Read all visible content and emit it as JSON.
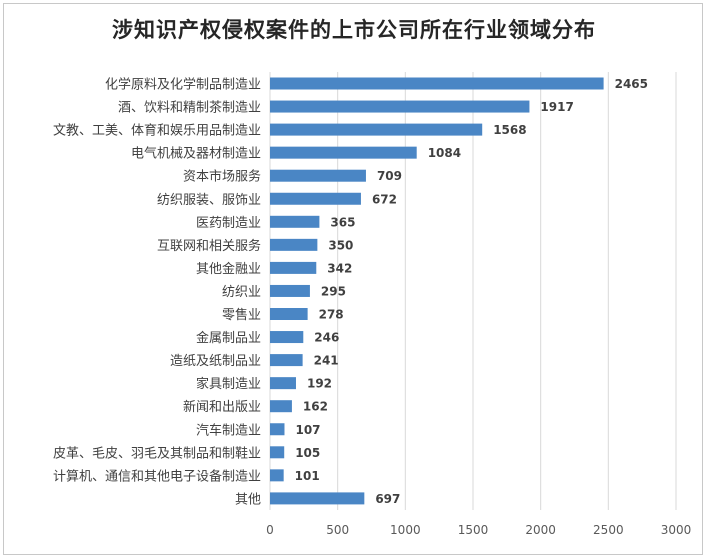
{
  "chart_data": {
    "type": "bar",
    "orientation": "horizontal",
    "title": "涉知识产权侵权案件的上市公司所在行业领域分布",
    "categories": [
      "化学原料及化学制品制造业",
      "酒、饮料和精制茶制造业",
      "文教、工美、体育和娱乐用品制造业",
      "电气机械及器材制造业",
      "资本市场服务",
      "纺织服装、服饰业",
      "医药制造业",
      "互联网和相关服务",
      "其他金融业",
      "纺织业",
      "零售业",
      "金属制品业",
      "造纸及纸制品业",
      "家具制造业",
      "新闻和出版业",
      "汽车制造业",
      "皮革、毛皮、羽毛及其制品和制鞋业",
      "计算机、通信和其他电子设备制造业",
      "其他"
    ],
    "values": [
      2465,
      1917,
      1568,
      1084,
      709,
      672,
      365,
      350,
      342,
      295,
      278,
      246,
      241,
      192,
      162,
      107,
      105,
      101,
      697
    ],
    "xlim": [
      0,
      3000
    ],
    "xticks": [
      "0",
      "500",
      "1000",
      "1500",
      "2000",
      "2500",
      "3000"
    ],
    "grid": true,
    "bar_color": "#4a86c5"
  }
}
